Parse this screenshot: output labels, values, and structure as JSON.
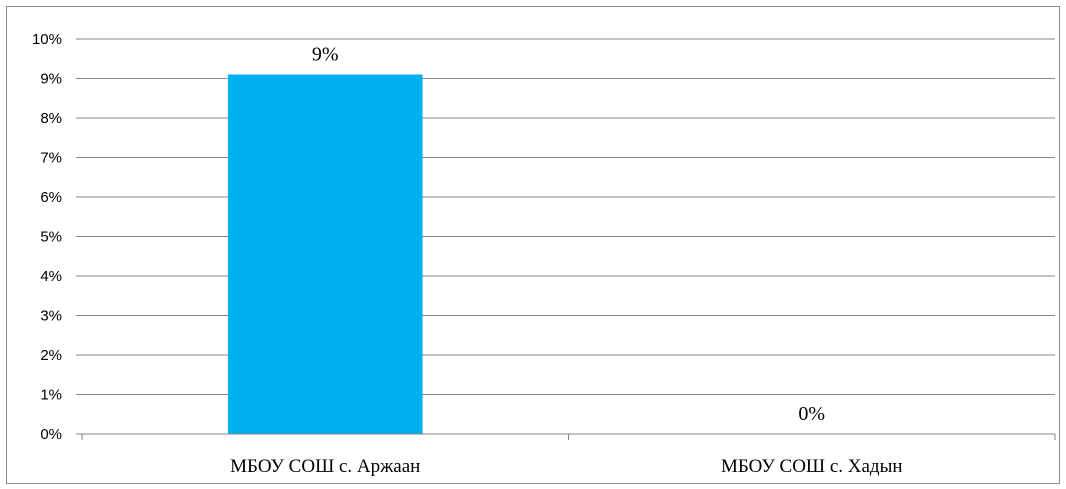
{
  "chart_data": {
    "type": "bar",
    "categories": [
      "МБОУ СОШ с. Аржаан",
      "МБОУ СОШ с. Хадын"
    ],
    "values": [
      9.1,
      0
    ],
    "data_labels": [
      "9%",
      "0%"
    ],
    "ylim": [
      0,
      10
    ],
    "yticks": [
      0,
      1,
      2,
      3,
      4,
      5,
      6,
      7,
      8,
      9,
      10
    ],
    "ytick_labels": [
      "0%",
      "1%",
      "2%",
      "3%",
      "4%",
      "5%",
      "6%",
      "7%",
      "8%",
      "9%",
      "10%"
    ],
    "grid": true,
    "legend": "none",
    "title": "",
    "xlabel": "",
    "ylabel": "",
    "bar_color": "#00B0F0",
    "grid_color": "#868686"
  }
}
